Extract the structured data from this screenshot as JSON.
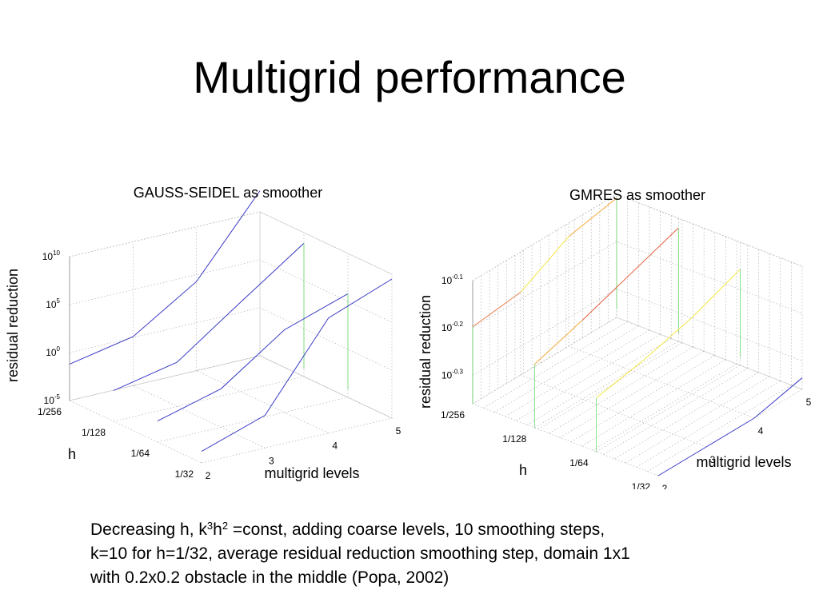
{
  "slide": {
    "title": "Multigrid performance"
  },
  "caption": {
    "part1": "Decreasing h, k",
    "sup1": "3",
    "part2": "h",
    "sup2": "2",
    "part3": " =const, adding coarse levels, 10 smoothing steps,",
    "line2": "k=10 for h=1/32, average residual reduction smoothing step, domain 1x1",
    "line3": "with 0.2x0.2 obstacle in the middle (Popa, 2002)"
  },
  "chart_data": [
    {
      "type": "line3d",
      "title": "GAUSS-SEIDEL as smoother",
      "xlabel": "multigrid levels",
      "ylabel": "h",
      "zlabel": "residual reduction",
      "x_ticks": [
        "2",
        "3",
        "4",
        "5"
      ],
      "y_ticks": [
        "1/256",
        "1/128",
        "1/64",
        "1/32"
      ],
      "z_ticks": [
        {
          "base": "10",
          "exp": "10"
        },
        {
          "base": "10",
          "exp": "5"
        },
        {
          "base": "10",
          "exp": "0"
        },
        {
          "base": "10",
          "exp": "-5"
        }
      ],
      "z_scale": "log",
      "zlim_exp": [
        -5,
        10
      ],
      "grid": true,
      "series": [
        {
          "h": "1/256",
          "levels": [
            2,
            3,
            4,
            5
          ],
          "log10_values": [
            -1.2,
            0.1,
            4.3,
            12.2
          ],
          "color": "#3a3ac8"
        },
        {
          "h": "1/128",
          "levels": [
            2,
            3,
            4,
            5
          ],
          "log10_values": [
            -1.8,
            -0.4,
            4.3,
            8.9
          ],
          "color": "#3a3ac8"
        },
        {
          "h": "1/64",
          "levels": [
            2,
            3,
            4,
            5
          ],
          "log10_values": [
            -2.8,
            -1.0,
            3.6,
            5.8
          ],
          "color": "#3a3ac8"
        },
        {
          "h": "1/32",
          "levels": [
            2,
            3,
            4,
            5
          ],
          "log10_values": [
            -3.8,
            -1.6,
            7.0,
            9.5
          ],
          "color": "#3a3ac8"
        }
      ]
    },
    {
      "type": "line3d",
      "title": "GMRES as smoother",
      "xlabel": "multigrid levels",
      "ylabel": "h",
      "zlabel": "residual reduction",
      "x_ticks": [
        "2",
        "3",
        "4",
        "5"
      ],
      "y_ticks": [
        "1/256",
        "1/128",
        "1/64",
        "1/32"
      ],
      "z_ticks": [
        {
          "base": "10",
          "exp": "-0.1"
        },
        {
          "base": "10",
          "exp": "-0.2"
        },
        {
          "base": "10",
          "exp": "-0.3"
        }
      ],
      "z_scale": "log",
      "zlim_exp": [
        -0.42,
        -0.1
      ],
      "grid": true,
      "series": [
        {
          "h": "1/256",
          "levels": [
            2,
            3,
            4,
            5
          ],
          "log10_values": [
            -0.22,
            -0.205,
            -0.135,
            -0.11
          ],
          "colors": [
            "#e67c45",
            "#f5e642",
            "#f5a83a"
          ]
        },
        {
          "h": "1/128",
          "levels": [
            2,
            3,
            4,
            5
          ],
          "log10_values": [
            -0.255,
            -0.215,
            -0.17,
            -0.125
          ],
          "colors": [
            "#f5a83a",
            "#e65c3a",
            "#e65c3a"
          ]
        },
        {
          "h": "1/64",
          "levels": [
            2,
            3,
            4,
            5
          ],
          "log10_values": [
            -0.28,
            -0.255,
            -0.22,
            -0.17
          ],
          "colors": [
            "#f5e642",
            "#f5e642",
            "#f5e642"
          ]
        },
        {
          "h": "1/32",
          "levels": [
            2,
            3,
            4,
            5
          ],
          "log10_values": [
            -0.5,
            -0.47,
            -0.42,
            -0.39
          ],
          "colors": [
            "#3a3ac8",
            "#3a3ac8",
            "#3a3ac8"
          ]
        }
      ]
    }
  ]
}
